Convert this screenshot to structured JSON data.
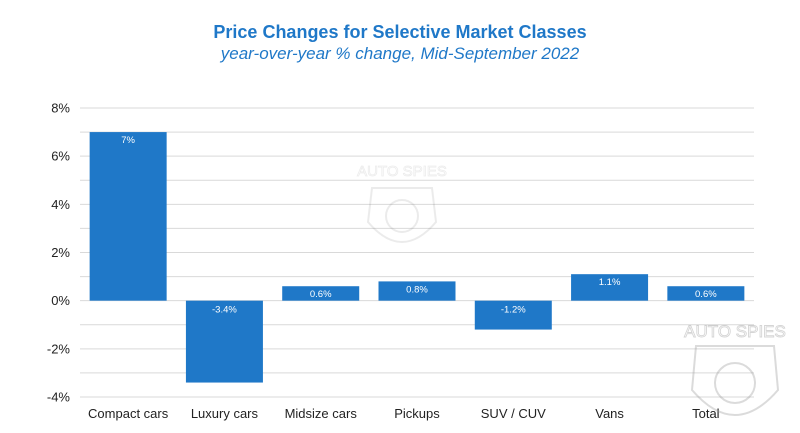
{
  "chart_data": {
    "type": "bar",
    "title": "Price Changes for Selective Market Classes",
    "subtitle": "year-over-year % change, Mid-September 2022",
    "categories": [
      "Compact cars",
      "Luxury cars",
      "Midsize cars",
      "Pickups",
      "SUV / CUV",
      "Vans",
      "Total"
    ],
    "values": [
      7,
      -3.4,
      0.6,
      0.8,
      -1.2,
      1.1,
      0.6
    ],
    "data_labels": [
      "7%",
      "-3.4%",
      "0.6%",
      "0.8%",
      "-1.2%",
      "1.1%",
      "0.6%"
    ],
    "ylim": [
      -4,
      8
    ],
    "yticks": [
      8,
      6,
      4,
      2,
      0,
      -2,
      -4
    ],
    "ytick_labels": [
      "8%",
      "6%",
      "4%",
      "2%",
      "0%",
      "-2%",
      "-4%"
    ],
    "grid": true,
    "bar_color": "#1f78c8"
  },
  "watermarks": [
    "AUTO SPIES",
    "AUTO SPIES"
  ]
}
